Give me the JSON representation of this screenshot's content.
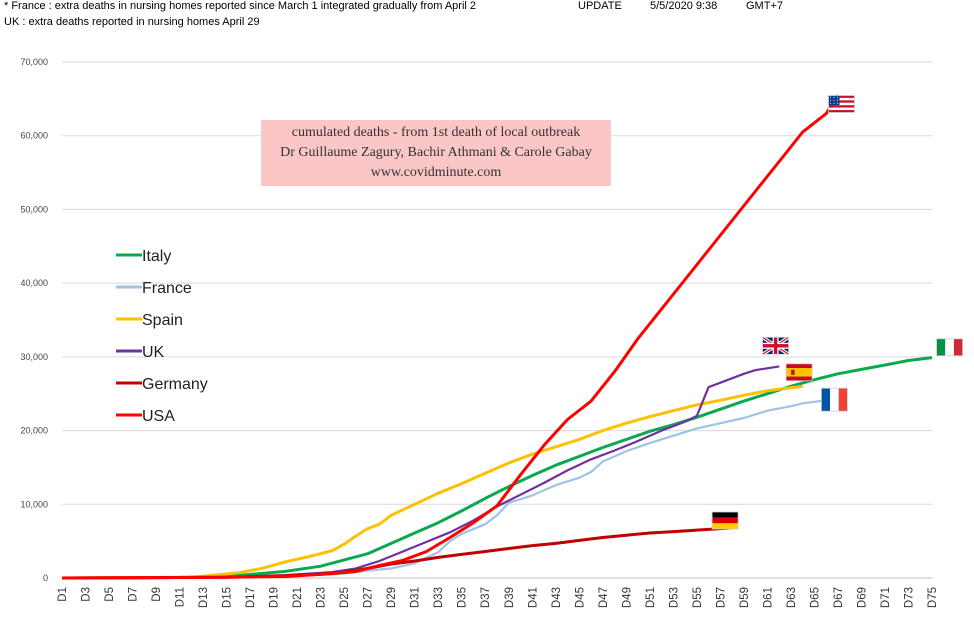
{
  "header": {
    "line1": "* France : extra deaths in nursing homes reported since March 1 integrated gradually from April 2",
    "update_label": "UPDATE",
    "update_date": "5/5/2020 9:38",
    "timezone": "GMT+7",
    "line2": "UK : extra deaths reported in nursing homes April 29"
  },
  "annotation": {
    "line1": "cumulated deaths - from 1st death  of local outbreak",
    "line2": "Dr Guillaume Zagury, Bachir Athmani & Carole Gabay",
    "line3": "www.covidminute.com"
  },
  "chart_data": {
    "type": "line",
    "x_tick_labels": [
      "D1",
      "D3",
      "D5",
      "D7",
      "D9",
      "D11",
      "D13",
      "D15",
      "D17",
      "D19",
      "D21",
      "D23",
      "D25",
      "D27",
      "D29",
      "D31",
      "D33",
      "D35",
      "D37",
      "D39",
      "D41",
      "D43",
      "D45",
      "D47",
      "D49",
      "D51",
      "D53",
      "D55",
      "D57",
      "D59",
      "D61",
      "D63",
      "D65",
      "D67",
      "D69",
      "D71",
      "D73",
      "D75"
    ],
    "xlim": [
      1,
      75
    ],
    "ylim": [
      0,
      70000
    ],
    "y_ticks": [
      0,
      10000,
      20000,
      30000,
      40000,
      50000,
      60000,
      70000
    ],
    "y_tick_labels": [
      "0",
      "10,000",
      "20,000",
      "30,000",
      "40,000",
      "50,000",
      "60,000",
      "70,000"
    ],
    "grid": "horizontal",
    "legend_position": "left",
    "series": [
      {
        "name": "Italy",
        "color": "#0aa84f",
        "points": [
          [
            1,
            0
          ],
          [
            10,
            50
          ],
          [
            15,
            200
          ],
          [
            20,
            900
          ],
          [
            23,
            1600
          ],
          [
            27,
            3300
          ],
          [
            29,
            4700
          ],
          [
            31,
            6100
          ],
          [
            33,
            7500
          ],
          [
            35,
            9100
          ],
          [
            37,
            10800
          ],
          [
            39,
            12400
          ],
          [
            41,
            13900
          ],
          [
            43,
            15300
          ],
          [
            45,
            16500
          ],
          [
            47,
            17700
          ],
          [
            49,
            18800
          ],
          [
            51,
            19900
          ],
          [
            53,
            20800
          ],
          [
            55,
            21800
          ],
          [
            57,
            22900
          ],
          [
            59,
            24000
          ],
          [
            61,
            25000
          ],
          [
            63,
            26000
          ],
          [
            65,
            26900
          ],
          [
            67,
            27700
          ],
          [
            69,
            28300
          ],
          [
            71,
            28900
          ],
          [
            73,
            29500
          ],
          [
            75,
            29900
          ]
        ]
      },
      {
        "name": "France",
        "color": "#9dc3e6",
        "points": [
          [
            1,
            0
          ],
          [
            15,
            100
          ],
          [
            20,
            300
          ],
          [
            25,
            600
          ],
          [
            27,
            1000
          ],
          [
            29,
            1300
          ],
          [
            31,
            2000
          ],
          [
            33,
            3500
          ],
          [
            34,
            5000
          ],
          [
            35,
            6000
          ],
          [
            37,
            7300
          ],
          [
            38,
            8500
          ],
          [
            39,
            10200
          ],
          [
            41,
            11200
          ],
          [
            43,
            12600
          ],
          [
            45,
            13600
          ],
          [
            46,
            14400
          ],
          [
            47,
            15800
          ],
          [
            49,
            17200
          ],
          [
            51,
            18300
          ],
          [
            53,
            19300
          ],
          [
            55,
            20300
          ],
          [
            57,
            21000
          ],
          [
            59,
            21700
          ],
          [
            61,
            22700
          ],
          [
            63,
            23300
          ],
          [
            64,
            23700
          ],
          [
            66,
            24100
          ]
        ]
      },
      {
        "name": "Spain",
        "color": "#ffc000",
        "points": [
          [
            1,
            0
          ],
          [
            12,
            100
          ],
          [
            14,
            400
          ],
          [
            16,
            700
          ],
          [
            18,
            1300
          ],
          [
            20,
            2200
          ],
          [
            22,
            2900
          ],
          [
            24,
            3700
          ],
          [
            25,
            4600
          ],
          [
            26,
            5700
          ],
          [
            27,
            6700
          ],
          [
            28,
            7300
          ],
          [
            29,
            8500
          ],
          [
            31,
            10000
          ],
          [
            33,
            11500
          ],
          [
            35,
            12800
          ],
          [
            37,
            14200
          ],
          [
            39,
            15600
          ],
          [
            41,
            16800
          ],
          [
            43,
            17800
          ],
          [
            45,
            18800
          ],
          [
            47,
            20000
          ],
          [
            49,
            21000
          ],
          [
            51,
            21900
          ],
          [
            53,
            22700
          ],
          [
            55,
            23500
          ],
          [
            57,
            24100
          ],
          [
            59,
            24800
          ],
          [
            61,
            25400
          ],
          [
            63,
            25800
          ],
          [
            64,
            26000
          ]
        ]
      },
      {
        "name": "UK",
        "color": "#7030a0",
        "points": [
          [
            1,
            0
          ],
          [
            15,
            100
          ],
          [
            20,
            400
          ],
          [
            24,
            800
          ],
          [
            26,
            1300
          ],
          [
            28,
            2300
          ],
          [
            30,
            3600
          ],
          [
            32,
            4900
          ],
          [
            34,
            6200
          ],
          [
            36,
            7800
          ],
          [
            38,
            9700
          ],
          [
            40,
            11300
          ],
          [
            42,
            12900
          ],
          [
            44,
            14600
          ],
          [
            46,
            16100
          ],
          [
            48,
            17300
          ],
          [
            50,
            18600
          ],
          [
            52,
            20000
          ],
          [
            54,
            21200
          ],
          [
            55,
            22000
          ],
          [
            56,
            25900
          ],
          [
            57,
            26500
          ],
          [
            59,
            27700
          ],
          [
            60,
            28200
          ],
          [
            62,
            28700
          ]
        ]
      },
      {
        "name": "Germany",
        "color": "#c00000",
        "points": [
          [
            1,
            0
          ],
          [
            15,
            100
          ],
          [
            20,
            300
          ],
          [
            23,
            500
          ],
          [
            25,
            800
          ],
          [
            27,
            1300
          ],
          [
            29,
            1900
          ],
          [
            31,
            2300
          ],
          [
            33,
            2800
          ],
          [
            35,
            3200
          ],
          [
            37,
            3600
          ],
          [
            39,
            4000
          ],
          [
            41,
            4400
          ],
          [
            43,
            4700
          ],
          [
            45,
            5100
          ],
          [
            47,
            5500
          ],
          [
            49,
            5800
          ],
          [
            51,
            6100
          ],
          [
            53,
            6300
          ],
          [
            55,
            6500
          ],
          [
            57,
            6700
          ],
          [
            58,
            6800
          ]
        ]
      },
      {
        "name": "USA",
        "color": "#ff0000",
        "points": [
          [
            1,
            0
          ],
          [
            15,
            100
          ],
          [
            20,
            200
          ],
          [
            24,
            600
          ],
          [
            26,
            900
          ],
          [
            28,
            1700
          ],
          [
            30,
            2400
          ],
          [
            32,
            3600
          ],
          [
            34,
            5500
          ],
          [
            36,
            7500
          ],
          [
            38,
            9800
          ],
          [
            40,
            14000
          ],
          [
            42,
            18000
          ],
          [
            44,
            21500
          ],
          [
            46,
            24000
          ],
          [
            48,
            28000
          ],
          [
            50,
            32500
          ],
          [
            52,
            36500
          ],
          [
            54,
            40500
          ],
          [
            56,
            44500
          ],
          [
            58,
            48500
          ],
          [
            60,
            52500
          ],
          [
            62,
            56500
          ],
          [
            64,
            60500
          ],
          [
            66,
            63000
          ],
          [
            67,
            65500
          ]
        ]
      }
    ],
    "flags": [
      {
        "country": "USA",
        "x": 67.3,
        "y": 64300
      },
      {
        "country": "UK",
        "x": 61.7,
        "y": 31500
      },
      {
        "country": "Italy",
        "x": 76.5,
        "y": 31300
      },
      {
        "country": "Spain",
        "x": 63.7,
        "y": 27900
      },
      {
        "country": "France",
        "x": 66.7,
        "y": 24600
      },
      {
        "country": "Germany",
        "x": 57.4,
        "y": 7800
      }
    ]
  }
}
